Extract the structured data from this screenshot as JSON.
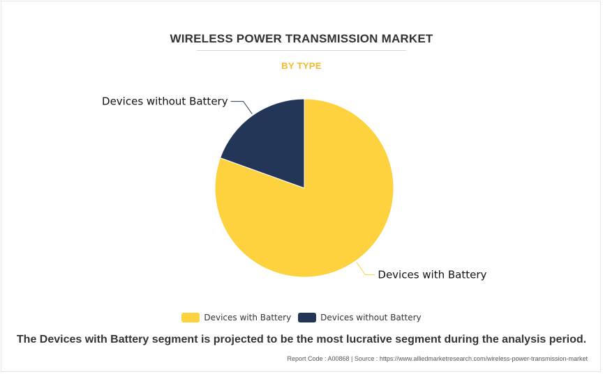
{
  "chart_data": {
    "type": "pie",
    "title": "WIRELESS POWER TRANSMISSION MARKET",
    "subtitle": "BY TYPE",
    "categories": [
      "Devices with Battery",
      "Devices without Battery"
    ],
    "values": [
      80.5,
      19.5
    ],
    "colors": [
      "#fdd23e",
      "#243658"
    ],
    "legend": {
      "position": "bottom",
      "entries": [
        "Devices with Battery",
        "Devices without Battery"
      ]
    },
    "slice_labels": [
      "Devices with Battery",
      "Devices without Battery"
    ]
  },
  "caption": "The Devices with Battery segment is projected to be the most lucrative segment during the analysis period.",
  "footer": "Report Code : A00868  |  Source : https://www.alliedmarketresearch.com/wireless-power-transmission-market"
}
